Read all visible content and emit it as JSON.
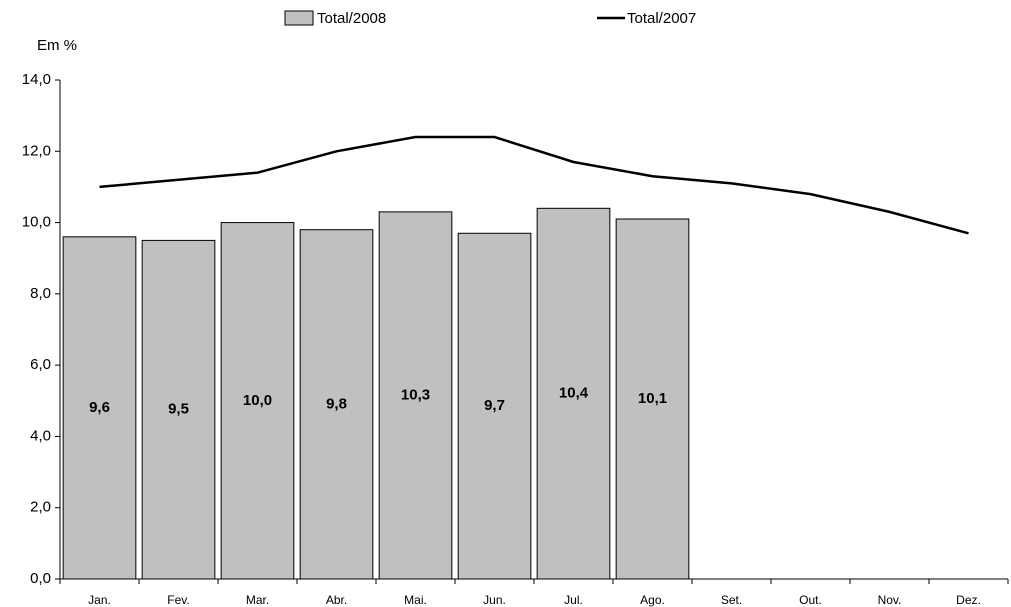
{
  "chart_data": {
    "type": "bar-line",
    "y_label": "Em %",
    "categories": [
      "Jan.",
      "Fev.",
      "Mar.",
      "Abr.",
      "Mai.",
      "Jun.",
      "Jul.",
      "Ago.",
      "Set.",
      "Out.",
      "Nov.",
      "Dez."
    ],
    "series": [
      {
        "name": "Total/2008",
        "type": "bar",
        "color": "#c0c0c0",
        "values": [
          9.6,
          9.5,
          10.0,
          9.8,
          10.3,
          9.7,
          10.4,
          10.1,
          null,
          null,
          null,
          null
        ],
        "value_labels": [
          "9,6",
          "9,5",
          "10,0",
          "9,8",
          "10,3",
          "9,7",
          "10,4",
          "10,1",
          null,
          null,
          null,
          null
        ]
      },
      {
        "name": "Total/2007",
        "type": "line",
        "color": "#000000",
        "values": [
          11.0,
          11.2,
          11.4,
          12.0,
          12.4,
          12.4,
          11.7,
          11.3,
          11.1,
          10.8,
          10.3,
          9.7
        ]
      }
    ],
    "ylim": [
      0,
      14
    ],
    "yticks": [
      {
        "value": 0,
        "label": "0,0"
      },
      {
        "value": 2,
        "label": "2,0"
      },
      {
        "value": 4,
        "label": "4,0"
      },
      {
        "value": 6,
        "label": "6,0"
      },
      {
        "value": 8,
        "label": "8,0"
      },
      {
        "value": 10,
        "label": "10,0"
      },
      {
        "value": 12,
        "label": "12,0"
      },
      {
        "value": 14,
        "label": "14,0"
      }
    ],
    "grid": false,
    "legend": "top"
  }
}
